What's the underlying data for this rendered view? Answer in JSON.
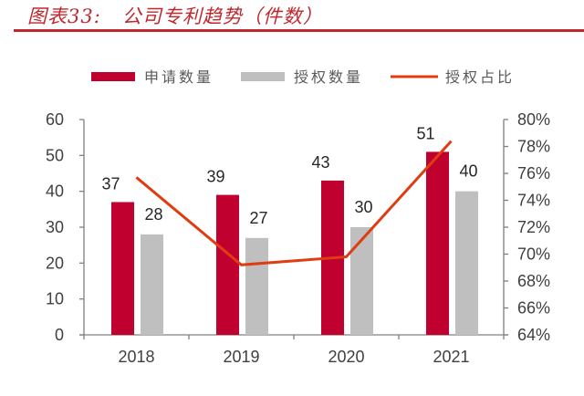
{
  "header": {
    "title": "图表33:   公司专利趋势（件数）"
  },
  "chart_data": {
    "type": "bar",
    "title": "公司专利趋势（件数）",
    "categories": [
      "2018",
      "2019",
      "2020",
      "2021"
    ],
    "series": [
      {
        "name": "申请数量",
        "kind": "bar",
        "axis": "left",
        "color": "#c0002f",
        "values": [
          37,
          39,
          43,
          51
        ]
      },
      {
        "name": "授权数量",
        "kind": "bar",
        "axis": "left",
        "color": "#bfbfbf",
        "values": [
          28,
          27,
          30,
          40
        ]
      },
      {
        "name": "授权占比",
        "kind": "line",
        "axis": "right",
        "color": "#e03c12",
        "values": [
          75.7,
          69.2,
          69.8,
          78.4
        ]
      }
    ],
    "y_left": {
      "min": 0,
      "max": 60,
      "ticks": [
        "0",
        "10",
        "20",
        "30",
        "40",
        "50",
        "60"
      ]
    },
    "y_right": {
      "min": 64,
      "max": 80,
      "ticks": [
        "64%",
        "66%",
        "68%",
        "70%",
        "72%",
        "74%",
        "76%",
        "78%",
        "80%"
      ]
    },
    "legend_position": "top",
    "grid": false,
    "xlabel": "",
    "ylabel": ""
  }
}
